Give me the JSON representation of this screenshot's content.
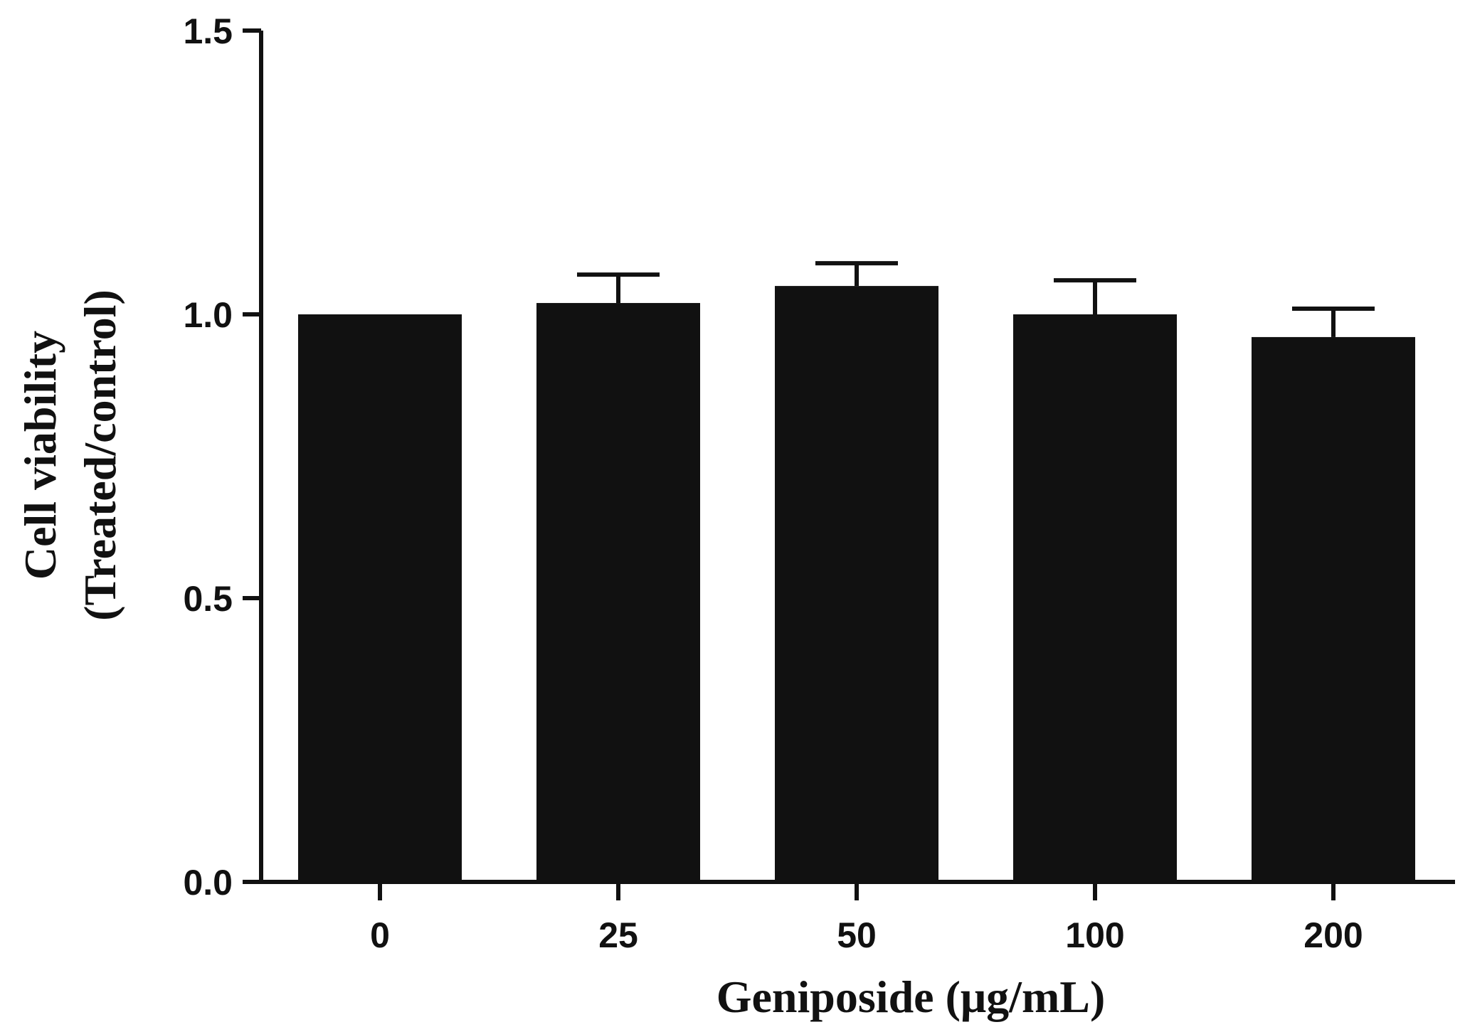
{
  "chart_data": {
    "type": "bar",
    "title": "",
    "xlabel": "Geniposide (μg/mL)",
    "ylabel_lines": [
      "Cell viability",
      "(Treated/control)"
    ],
    "categories": [
      "0",
      "25",
      "50",
      "100",
      "200"
    ],
    "values": [
      1.0,
      1.02,
      1.05,
      1.0,
      0.96
    ],
    "errors": [
      0.0,
      0.05,
      0.04,
      0.06,
      0.05
    ],
    "ylim": [
      0,
      1.5
    ],
    "yticks": [
      0.0,
      0.5,
      1.0,
      1.5
    ],
    "ytick_labels": [
      "0.0",
      "0.5",
      "1.0",
      "1.5"
    ],
    "grid": false,
    "legend": "none",
    "bar_color": "#111111",
    "axis_color": "#111111"
  }
}
